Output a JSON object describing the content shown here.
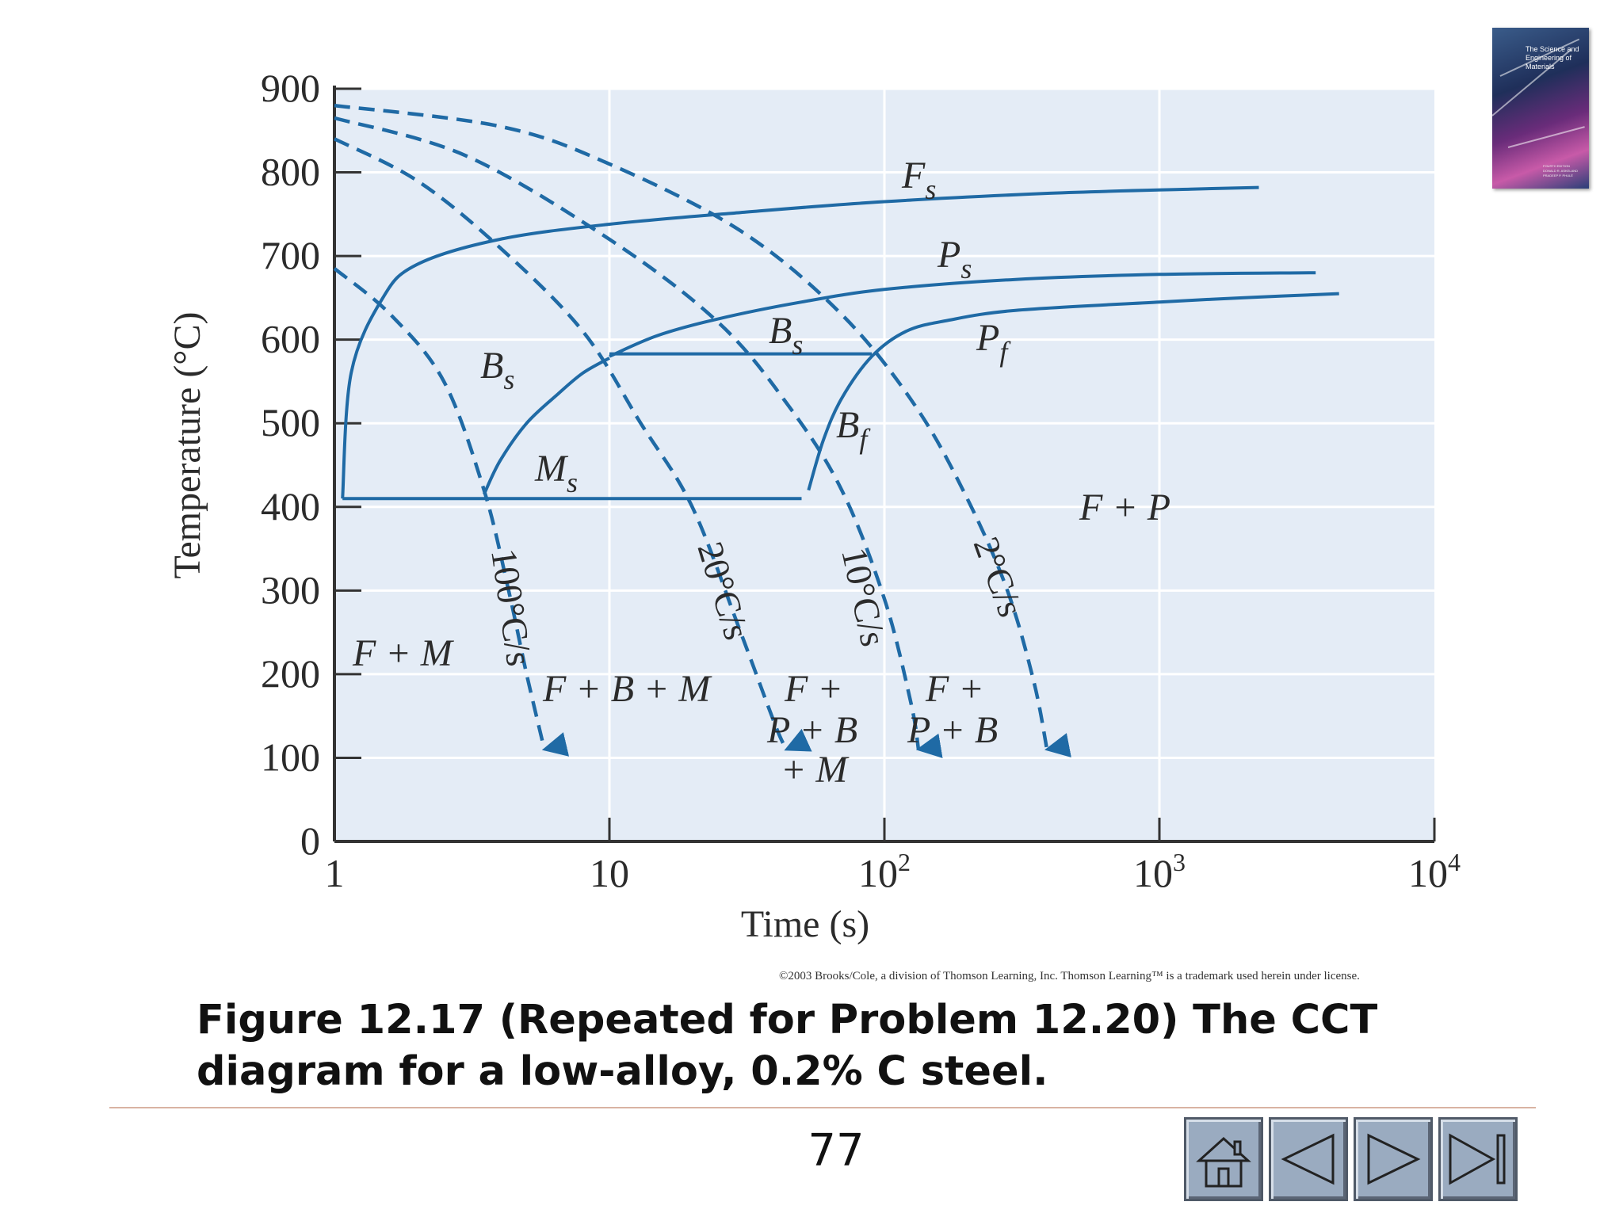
{
  "chart_data": {
    "type": "line",
    "title": "",
    "xlabel": "Time (s)",
    "ylabel": "Temperature (°C)",
    "x_scale": "log",
    "xlim": [
      1,
      10000
    ],
    "ylim": [
      0,
      900
    ],
    "grid": true,
    "x_ticks": [
      {
        "value": 1,
        "base": "1",
        "exp": ""
      },
      {
        "value": 10,
        "base": "10",
        "exp": ""
      },
      {
        "value": 100,
        "base": "10",
        "exp": "2"
      },
      {
        "value": 1000,
        "base": "10",
        "exp": "3"
      },
      {
        "value": 10000,
        "base": "10",
        "exp": "4"
      }
    ],
    "y_ticks": [
      0,
      100,
      200,
      300,
      400,
      500,
      600,
      700,
      800,
      900
    ],
    "transformation_curves": [
      {
        "key": "fs",
        "points": [
          [
            1.07,
            410
          ],
          [
            1.15,
            560
          ],
          [
            1.5,
            650
          ],
          [
            2,
            690
          ],
          [
            4,
            720
          ],
          [
            10,
            738
          ],
          [
            30,
            752
          ],
          [
            100,
            765
          ],
          [
            400,
            775
          ],
          [
            1300,
            780
          ],
          [
            2300,
            782
          ]
        ]
      },
      {
        "key": "ps",
        "points": [
          [
            10,
            580
          ],
          [
            15,
            605
          ],
          [
            25,
            625
          ],
          [
            50,
            645
          ],
          [
            100,
            660
          ],
          [
            300,
            672
          ],
          [
            1000,
            678
          ],
          [
            3700,
            680
          ]
        ]
      },
      {
        "key": "pf",
        "points": [
          [
            53,
            420
          ],
          [
            60,
            480
          ],
          [
            70,
            530
          ],
          [
            90,
            580
          ],
          [
            120,
            610
          ],
          [
            170,
            623
          ],
          [
            300,
            635
          ],
          [
            1000,
            645
          ],
          [
            2000,
            650
          ],
          [
            4500,
            655
          ]
        ]
      },
      {
        "key": "bs_left",
        "points": [
          [
            3.5,
            415
          ],
          [
            4,
            455
          ],
          [
            5,
            500
          ],
          [
            6.5,
            535
          ],
          [
            8,
            560
          ],
          [
            10,
            578
          ]
        ]
      },
      {
        "key": "bs_line",
        "points": [
          [
            10,
            583
          ],
          [
            90,
            583
          ]
        ]
      },
      {
        "key": "ms_line",
        "points": [
          [
            1.07,
            410
          ],
          [
            50,
            410
          ]
        ]
      }
    ],
    "cooling_curves": [
      {
        "label": "100°C/s",
        "points": [
          [
            1,
            685
          ],
          [
            1.6,
            630
          ],
          [
            2.5,
            550
          ],
          [
            3.5,
            420
          ],
          [
            4.3,
            300
          ],
          [
            5,
            200
          ],
          [
            5.8,
            110
          ]
        ]
      },
      {
        "label": "20°C/s",
        "points": [
          [
            1,
            840
          ],
          [
            2,
            790
          ],
          [
            4,
            710
          ],
          [
            8,
            610
          ],
          [
            13,
            500
          ],
          [
            20,
            400
          ],
          [
            30,
            250
          ],
          [
            40,
            140
          ],
          [
            44,
            110
          ]
        ]
      },
      {
        "label": "10°C/s",
        "points": [
          [
            1,
            865
          ],
          [
            3,
            820
          ],
          [
            10,
            720
          ],
          [
            25,
            620
          ],
          [
            45,
            520
          ],
          [
            70,
            420
          ],
          [
            100,
            290
          ],
          [
            125,
            165
          ],
          [
            133,
            110
          ]
        ]
      },
      {
        "label": "2°C/s",
        "points": [
          [
            1,
            880
          ],
          [
            4,
            855
          ],
          [
            10,
            810
          ],
          [
            30,
            730
          ],
          [
            70,
            630
          ],
          [
            130,
            520
          ],
          [
            200,
            410
          ],
          [
            280,
            300
          ],
          [
            350,
            190
          ],
          [
            390,
            110
          ]
        ]
      }
    ],
    "curve_labels": {
      "fs": {
        "main": "F",
        "sub": "s"
      },
      "ps": {
        "main": "P",
        "sub": "s"
      },
      "pf": {
        "main": "P",
        "sub": "f"
      },
      "bs_left": {
        "main": "B",
        "sub": "s"
      },
      "bs_right": {
        "main": "B",
        "sub": "s"
      },
      "bf": {
        "main": "B",
        "sub": "f"
      },
      "ms": {
        "main": "M",
        "sub": "s"
      }
    },
    "region_labels": {
      "fm": "F + M",
      "fbm": "F + B + M",
      "fpbm_1": "F +",
      "fpbm_2": "P + B",
      "fpbm_3": "+ M",
      "fpb_1": "F +",
      "fpb_2": "P + B",
      "fp": "F + P"
    },
    "colors": {
      "curve": "#1f6aa5",
      "plot_bg": "#e4ecf6",
      "grid": "#ffffff",
      "axis": "#333333"
    }
  },
  "copyright": "©2003 Brooks/Cole, a division of Thomson Learning, Inc. Thomson Learning™ is a trademark used herein under license.",
  "caption": {
    "line1": "Figure 12.17 (Repeated for Problem 12.20) The CCT",
    "line2": "diagram for a low-alloy, 0.2% C steel."
  },
  "page_number": "77",
  "book_cover": {
    "title": "The Science and Engineering of Materials",
    "edition": "FOURTH EDITION",
    "authors": "DONALD R. ASKELAND   PRADEEP P. PHULÉ"
  },
  "nav_buttons": {
    "home": "home-icon",
    "previous": "previous-arrow-icon",
    "next": "next-arrow-icon",
    "last": "last-slide-icon"
  }
}
